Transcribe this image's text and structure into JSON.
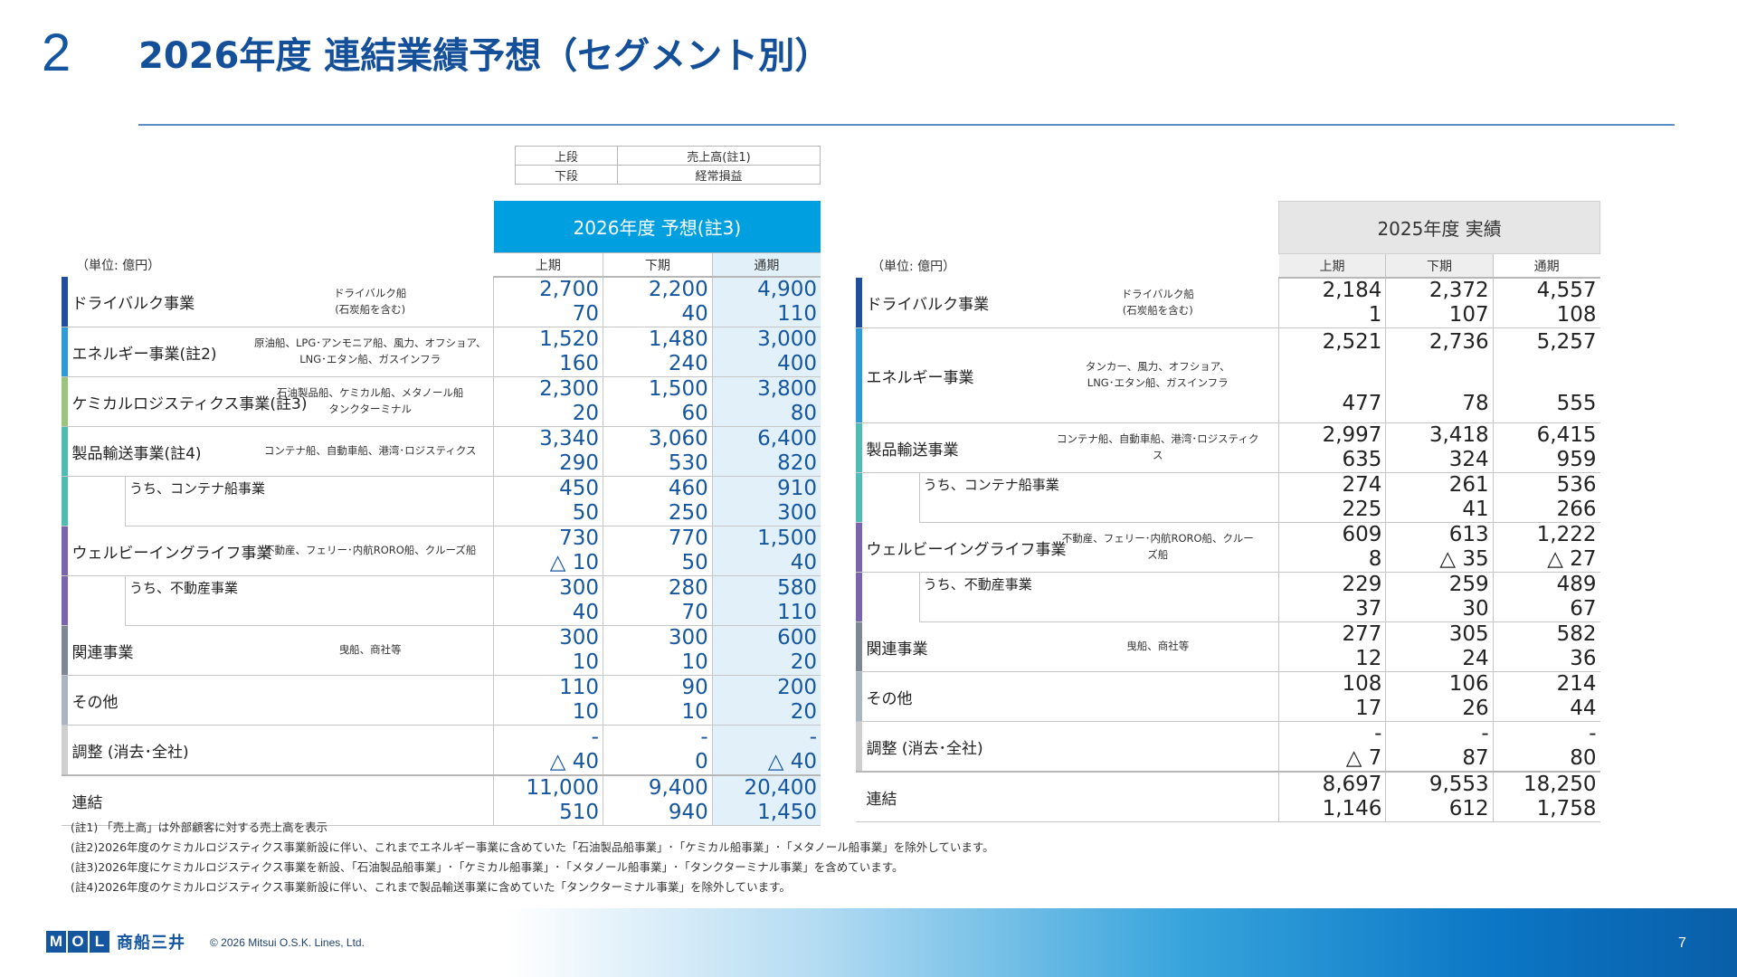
{
  "header": {
    "number": "2",
    "title": "2026年度 連結業績予想（セグメント別）"
  },
  "legend": [
    {
      "label": "上段",
      "value": "売上高(註1)"
    },
    {
      "label": "下段",
      "value": "経常損益"
    }
  ],
  "unit_label": "（単位: 億円）",
  "forecast": {
    "banner": "2026年度 予想(註3)",
    "columns": [
      "上期",
      "下期",
      "通期"
    ],
    "rows": [
      {
        "name": "ドライバルク事業",
        "desc": "ドライバルク船\n(石炭船を含む)",
        "color": "#1f4e9e",
        "sub": false,
        "sales": [
          "2,700",
          "2,200",
          "4,900"
        ],
        "profit": [
          "70",
          "40",
          "110"
        ]
      },
      {
        "name": "エネルギー事業(註2)",
        "desc": "原油船、LPG･アンモニア船、風力、オフショア、\nLNG･エタン船、ガスインフラ",
        "color": "#2e9bd6",
        "sub": false,
        "sales": [
          "1,520",
          "1,480",
          "3,000"
        ],
        "profit": [
          "160",
          "240",
          "400"
        ]
      },
      {
        "name": "ケミカルロジスティクス事業(註3)",
        "desc": "石油製品船、ケミカル船、メタノール船\nタンクターミナル",
        "color": "#9bc47d",
        "sub": false,
        "sales": [
          "2,300",
          "1,500",
          "3,800"
        ],
        "profit": [
          "20",
          "60",
          "80"
        ]
      },
      {
        "name": "製品輸送事業(註4)",
        "desc": "コンテナ船、自動車船、港湾･ロジスティクス",
        "color": "#4fbdb5",
        "sub": false,
        "sales": [
          "3,340",
          "3,060",
          "6,400"
        ],
        "profit": [
          "290",
          "530",
          "820"
        ]
      },
      {
        "name": "うち、コンテナ船事業",
        "desc": "",
        "color": "#4fbdb5",
        "sub": true,
        "sales": [
          "450",
          "460",
          "910"
        ],
        "profit": [
          "50",
          "250",
          "300"
        ]
      },
      {
        "name": "ウェルビーイングライフ事業",
        "desc": "不動産、フェリー･内航RORO船、クルーズ船",
        "color": "#7a64b0",
        "sub": false,
        "sales": [
          "730",
          "770",
          "1,500"
        ],
        "profit": [
          "△ 10",
          "50",
          "40"
        ]
      },
      {
        "name": "うち、不動産事業",
        "desc": "",
        "color": "#7a64b0",
        "sub": true,
        "sales": [
          "300",
          "280",
          "580"
        ],
        "profit": [
          "40",
          "70",
          "110"
        ]
      },
      {
        "name": "関連事業",
        "desc": "曳船、商社等",
        "color": "#7d8894",
        "sub": false,
        "sales": [
          "300",
          "300",
          "600"
        ],
        "profit": [
          "10",
          "10",
          "20"
        ]
      },
      {
        "name": "その他",
        "desc": "",
        "color": "#a9b6c2",
        "sub": false,
        "sales": [
          "110",
          "90",
          "200"
        ],
        "profit": [
          "10",
          "10",
          "20"
        ]
      },
      {
        "name": "調整 (消去･全社)",
        "desc": "",
        "color": "#cfcfcf",
        "sub": false,
        "sales": [
          "-",
          "-",
          "-"
        ],
        "profit": [
          "△ 40",
          "0",
          "△ 40"
        ]
      }
    ],
    "total": {
      "name": "連結",
      "sales": [
        "11,000",
        "9,400",
        "20,400"
      ],
      "profit": [
        "510",
        "940",
        "1,450"
      ]
    }
  },
  "actual": {
    "banner": "2025年度 実績",
    "columns": [
      "上期",
      "下期",
      "通期"
    ],
    "rows": [
      {
        "name": "ドライバルク事業",
        "desc": "ドライバルク船\n(石炭船を含む)",
        "color": "#1f4e9e",
        "sub": false,
        "sales": [
          "2,184",
          "2,372",
          "4,557"
        ],
        "profit": [
          "1",
          "107",
          "108"
        ]
      },
      {
        "name": "エネルギー事業",
        "desc": "タンカー、風力、オフショア、\nLNG･エタン船、ガスインフラ",
        "color": "#2e9bd6",
        "sub": false,
        "sales": [
          "2,521",
          "2,736",
          "5,257"
        ],
        "profit": [
          "477",
          "78",
          "555"
        ]
      },
      {
        "name": "製品輸送事業",
        "desc": "コンテナ船、自動車船、港湾･ロジスティク\nス",
        "color": "#4fbdb5",
        "sub": false,
        "sales": [
          "2,997",
          "3,418",
          "6,415"
        ],
        "profit": [
          "635",
          "324",
          "959"
        ]
      },
      {
        "name": "うち、コンテナ船事業",
        "desc": "",
        "color": "#4fbdb5",
        "sub": true,
        "sales": [
          "274",
          "261",
          "536"
        ],
        "profit": [
          "225",
          "41",
          "266"
        ]
      },
      {
        "name": "ウェルビーイングライフ事業",
        "desc": "不動産、フェリー･内航RORO船、クルー\nズ船",
        "color": "#7a64b0",
        "sub": false,
        "sales": [
          "609",
          "613",
          "1,222"
        ],
        "profit": [
          "8",
          "△ 35",
          "△ 27"
        ]
      },
      {
        "name": "うち、不動産事業",
        "desc": "",
        "color": "#7a64b0",
        "sub": true,
        "sales": [
          "229",
          "259",
          "489"
        ],
        "profit": [
          "37",
          "30",
          "67"
        ]
      },
      {
        "name": "関連事業",
        "desc": "曳船、商社等",
        "color": "#7d8894",
        "sub": false,
        "sales": [
          "277",
          "305",
          "582"
        ],
        "profit": [
          "12",
          "24",
          "36"
        ]
      },
      {
        "name": "その他",
        "desc": "",
        "color": "#a9b6c2",
        "sub": false,
        "sales": [
          "108",
          "106",
          "214"
        ],
        "profit": [
          "17",
          "26",
          "44"
        ]
      },
      {
        "name": "調整 (消去･全社)",
        "desc": "",
        "color": "#cfcfcf",
        "sub": false,
        "sales": [
          "-",
          "-",
          "-"
        ],
        "profit": [
          "△ 7",
          "87",
          "80"
        ]
      }
    ],
    "total": {
      "name": "連結",
      "sales": [
        "8,697",
        "9,553",
        "18,250"
      ],
      "profit": [
        "1,146",
        "612",
        "1,758"
      ]
    }
  },
  "notes": [
    "(註1) 「売上高」は外部顧客に対する売上高を表示",
    "(註2)2026年度のケミカルロジスティクス事業新設に伴い、これまでエネルギー事業に含めていた「石油製品船事業」･「ケミカル船事業」･「メタノール船事業」を除外しています。",
    "(註3)2026年度にケミカルロジスティクス事業を新設、「石油製品船事業」･「ケミカル船事業」･「メタノール船事業」･「タンクターミナル事業」を含めています。",
    "(註4)2026年度のケミカルロジスティクス事業新設に伴い、これまで製品輸送事業に含めていた「タンクターミナル事業」を除外しています。"
  ],
  "footer": {
    "logo_letters": [
      "M",
      "O",
      "L"
    ],
    "logo_kanji": "商船三井",
    "copyright": "© 2026 Mitsui O.S.K. Lines, Ltd.",
    "page_number": "7"
  },
  "colors": {
    "title": "#14509a",
    "forecast_banner": "#00a0e0",
    "forecast_full_year_bg": "#e2f0fa",
    "actual_banner": "#e6e6e6",
    "forecast_numbers": "#1556a0"
  }
}
